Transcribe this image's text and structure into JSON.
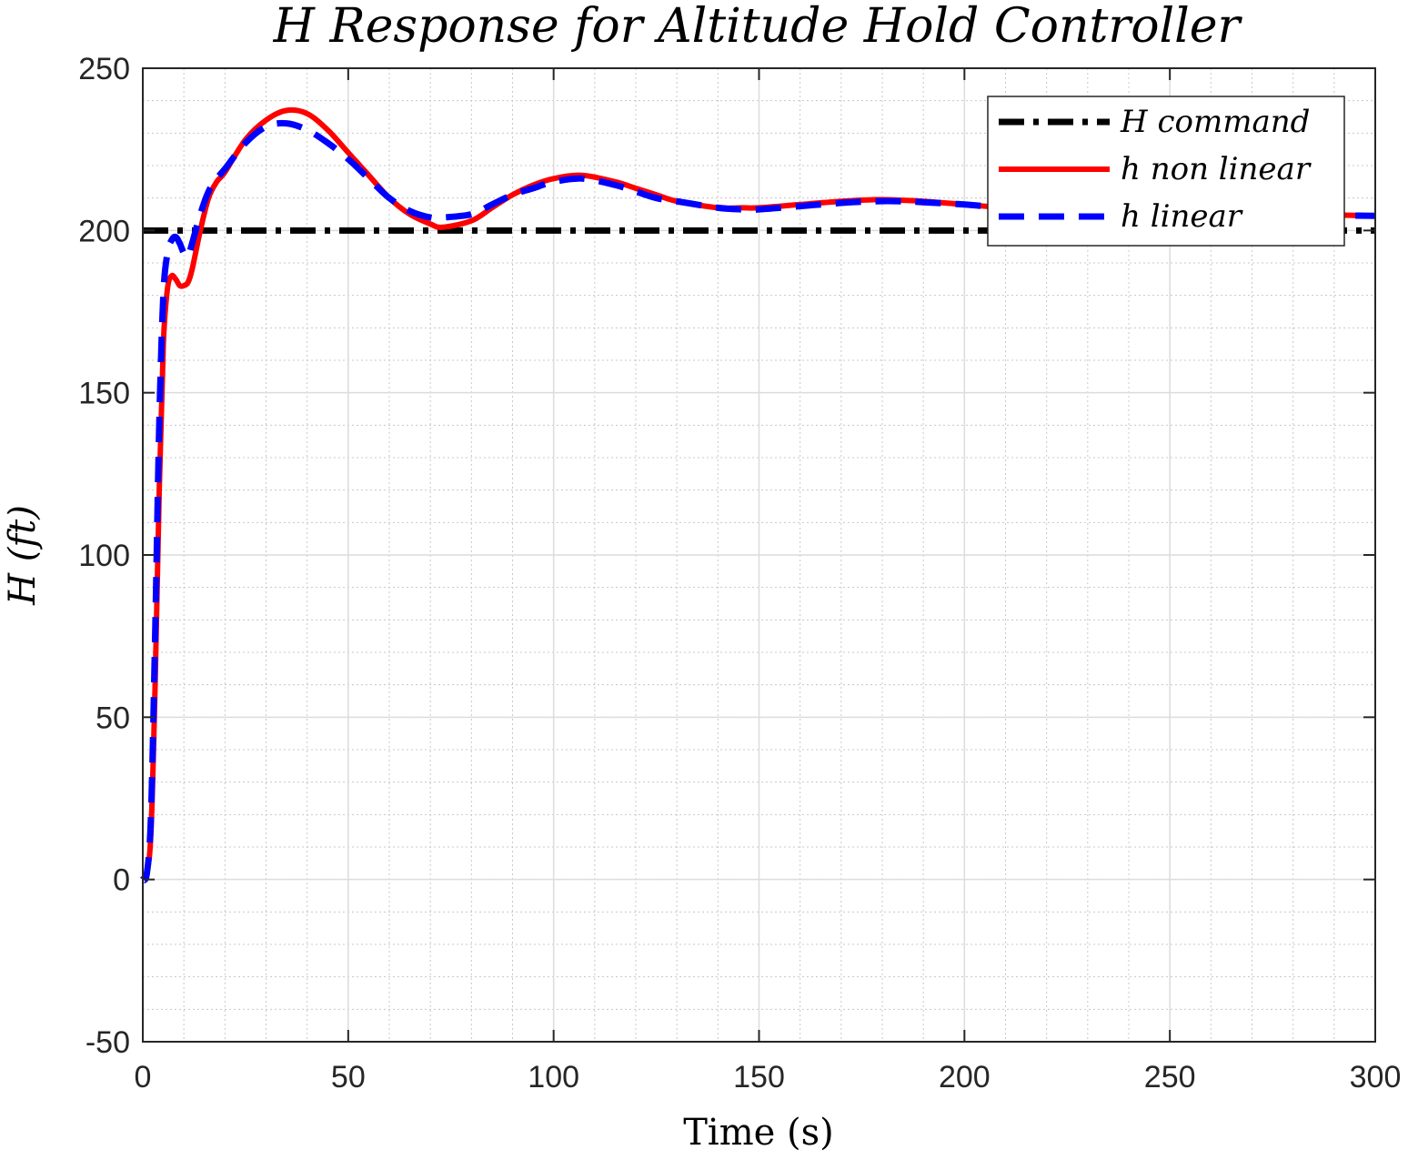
{
  "chart_data": {
    "type": "line",
    "title": "H Response for Altitude Hold Controller",
    "xlabel": "Time (s)",
    "ylabel": "H (ft)",
    "xlim": [
      0,
      300
    ],
    "ylim": [
      -50,
      250
    ],
    "x_ticks": [
      0,
      50,
      100,
      150,
      200,
      250,
      300
    ],
    "y_ticks": [
      -50,
      0,
      50,
      100,
      150,
      200,
      250
    ],
    "grid": true,
    "minor_grid": true,
    "legend_position": "top-right",
    "series": [
      {
        "name": "H command",
        "color": "#000000",
        "style": "dash-dot",
        "x": [
          0,
          300
        ],
        "y": [
          200,
          200
        ]
      },
      {
        "name": "h non linear",
        "color": "#ff0000",
        "style": "solid",
        "x": [
          0,
          1,
          2,
          3,
          4,
          5,
          6,
          7,
          8,
          9,
          10,
          11,
          12,
          14,
          16,
          18,
          20,
          25,
          30,
          35,
          40,
          45,
          50,
          55,
          60,
          65,
          70,
          73,
          80,
          85,
          90,
          95,
          100,
          107,
          115,
          120,
          125,
          130,
          140,
          146,
          150,
          160,
          170,
          178,
          185,
          190,
          200,
          210,
          220,
          230,
          240,
          250,
          260,
          270,
          280,
          290,
          300
        ],
        "y": [
          0,
          2,
          15,
          60,
          120,
          165,
          182,
          186,
          185,
          183,
          183,
          184,
          188,
          200,
          210,
          215,
          218,
          228,
          234,
          237,
          236,
          231,
          224,
          217,
          210,
          205,
          202,
          201,
          203,
          207,
          211,
          214,
          216,
          217,
          215,
          213,
          211,
          209,
          207,
          207,
          207,
          208,
          209,
          209.5,
          209.3,
          209,
          208,
          207,
          206.5,
          206,
          205.5,
          205,
          205,
          205,
          205,
          204.8,
          204.5
        ]
      },
      {
        "name": "h linear",
        "color": "#0000ff",
        "style": "dashed",
        "x": [
          0,
          1,
          2,
          3,
          4,
          5,
          6,
          7,
          8,
          9,
          10,
          11,
          12,
          14,
          16,
          18,
          20,
          25,
          30,
          35,
          40,
          45,
          50,
          55,
          60,
          65,
          70,
          73,
          80,
          85,
          90,
          95,
          100,
          107,
          115,
          120,
          125,
          130,
          140,
          146,
          150,
          160,
          170,
          178,
          185,
          190,
          200,
          210,
          220,
          230,
          240,
          250,
          260,
          270,
          280,
          290,
          300
        ],
        "y": [
          0,
          2,
          20,
          75,
          140,
          180,
          193,
          197,
          198,
          196,
          193,
          192,
          196,
          205,
          212,
          216,
          219,
          227,
          232,
          233,
          231,
          227,
          222,
          216,
          210,
          206,
          204,
          204,
          205,
          208,
          211,
          213,
          215,
          216,
          214,
          212,
          210,
          209,
          207,
          206.5,
          206.5,
          207.5,
          208.5,
          209,
          209,
          208.7,
          208,
          207,
          206.5,
          206,
          205.5,
          205,
          205,
          205,
          205,
          204.7,
          204.5
        ]
      }
    ]
  }
}
